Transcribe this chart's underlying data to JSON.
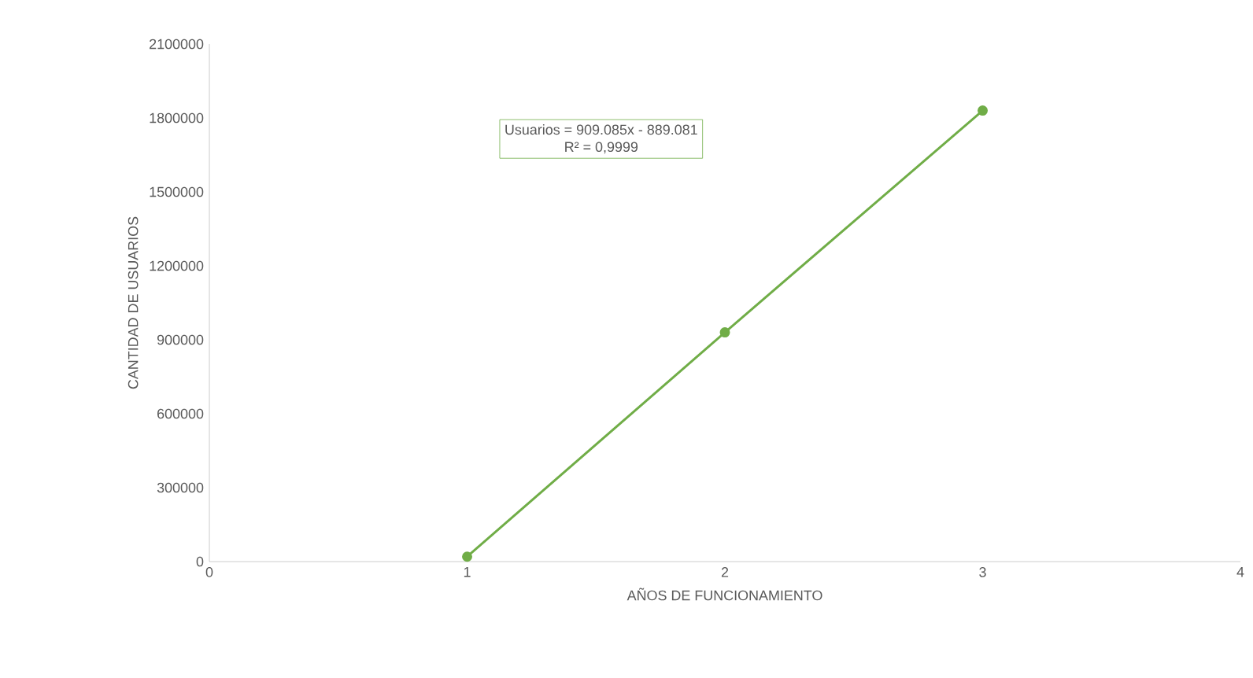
{
  "chart_data": {
    "type": "line",
    "xlabel": "AÑOS DE FUNCIONAMIENTO",
    "ylabel": "CANTIDAD DE USUARIOS",
    "x": [
      1,
      2,
      3
    ],
    "series": [
      {
        "color": "#70ad47",
        "values": [
          20000,
          930000,
          1830000
        ]
      }
    ],
    "marker": "circle",
    "line_style": "solid",
    "xlim": [
      0,
      4
    ],
    "xticks": [
      0,
      1,
      2,
      3,
      4
    ],
    "ylim": [
      0,
      2100000
    ],
    "yticks": [
      0,
      300000,
      600000,
      900000,
      1200000,
      1500000,
      1800000,
      2100000
    ],
    "annotations": [
      "Usuarios = 909.085x - 889.081",
      "R² = 0,9999"
    ]
  }
}
